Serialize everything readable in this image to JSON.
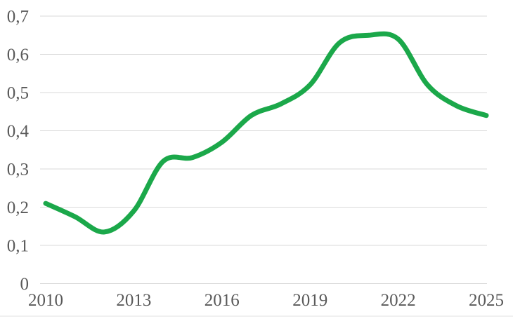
{
  "chart": {
    "background_color": "#ffffff",
    "line_color": "#1BA84A",
    "gridline_color": "#D9D9D9",
    "label_color": "#595959",
    "bottom_rule_color": "#F0F0F0",
    "line_width": 7
  },
  "chart_data": {
    "type": "line",
    "title": "",
    "xlabel": "",
    "ylabel": "",
    "series_name": "",
    "smooth": true,
    "grid": "horizontal-only",
    "legend": "none",
    "decimal_separator": ",",
    "x": [
      2010,
      2011,
      2012,
      2013,
      2014,
      2015,
      2016,
      2017,
      2018,
      2019,
      2020,
      2021,
      2022,
      2023,
      2024,
      2025
    ],
    "values": [
      0.21,
      0.175,
      0.135,
      0.19,
      0.32,
      0.33,
      0.37,
      0.44,
      0.47,
      0.52,
      0.63,
      0.65,
      0.64,
      0.52,
      0.465,
      0.44
    ],
    "xlim": [
      2010,
      2025
    ],
    "ylim": [
      0,
      0.7
    ],
    "yticks": [
      0,
      0.1,
      0.2,
      0.3,
      0.4,
      0.5,
      0.6,
      0.7
    ],
    "ytick_labels": [
      "0",
      "0,1",
      "0,2",
      "0,3",
      "0,4",
      "0,5",
      "0,6",
      "0,7"
    ],
    "xticks": [
      2010,
      2013,
      2016,
      2019,
      2022,
      2025
    ],
    "xtick_labels": [
      "2010",
      "2013",
      "2016",
      "2019",
      "2022",
      "2025"
    ]
  }
}
